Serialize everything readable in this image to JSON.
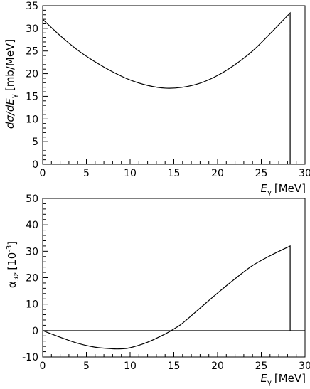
{
  "chart_data": [
    {
      "type": "line",
      "title": "",
      "xlabel": {
        "main": "E",
        "sub": "γ",
        "unit": "[MeV]"
      },
      "ylabel": {
        "main": "dσ/dE",
        "sub": "γ",
        "unit": "[mb/MeV]"
      },
      "xlim": [
        0,
        30
      ],
      "ylim": [
        0,
        35
      ],
      "xticks": [
        "0",
        "5",
        "10",
        "15",
        "20",
        "25",
        "30"
      ],
      "yticks": [
        "0",
        "5",
        "10",
        "15",
        "20",
        "25",
        "30",
        "35"
      ],
      "grid": false,
      "series": [
        {
          "x": [
            0,
            2,
            4,
            6,
            8,
            10,
            12,
            14,
            16,
            18,
            20,
            22,
            24,
            26,
            27.5,
            28.3,
            28.3
          ],
          "y": [
            32.0,
            28.4,
            25.2,
            22.6,
            20.4,
            18.6,
            17.4,
            16.8,
            17.0,
            17.9,
            19.6,
            22.0,
            25.0,
            28.8,
            31.8,
            33.4,
            0
          ]
        }
      ]
    },
    {
      "type": "line",
      "title": "",
      "xlabel": {
        "main": "E",
        "sub": "γ",
        "unit": "[MeV]"
      },
      "ylabel": {
        "main": "α",
        "sub": "3z",
        "unit": "[10",
        "unit_sup": "-3",
        "unit_end": "]"
      },
      "xlim": [
        0,
        30
      ],
      "ylim": [
        -10,
        50
      ],
      "xticks": [
        "0",
        "5",
        "10",
        "15",
        "20",
        "25",
        "30"
      ],
      "yticks": [
        "-10",
        "0",
        "10",
        "20",
        "30",
        "40",
        "50"
      ],
      "grid": false,
      "reference_line_y": 0,
      "series": [
        {
          "x": [
            0,
            2,
            4,
            6,
            8,
            9,
            10,
            12,
            14,
            15,
            16,
            18,
            20,
            22,
            24,
            26,
            28.3,
            28.3
          ],
          "y": [
            0,
            -2.5,
            -4.8,
            -6.3,
            -6.9,
            -6.9,
            -6.5,
            -4.4,
            -1.3,
            0.6,
            2.8,
            8.5,
            14.2,
            19.6,
            24.6,
            28.3,
            32.0,
            0
          ]
        }
      ]
    }
  ]
}
